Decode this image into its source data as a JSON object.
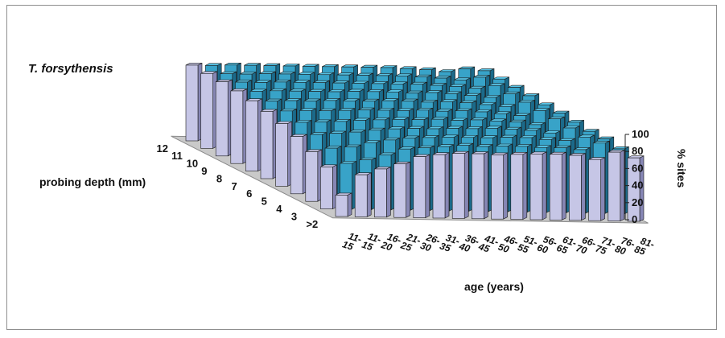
{
  "chart_data": {
    "type": "3d-bar",
    "title": "T. forsythensis",
    "ylabel": "probing depth (mm)",
    "xlabel": "age (years)",
    "zlabel": "% sites",
    "zlim": [
      0,
      100
    ],
    "z_ticks": [
      "0",
      "20",
      "40",
      "60",
      "80",
      "100"
    ],
    "depth_categories": [
      ">2",
      "3",
      "4",
      "5",
      "6",
      "7",
      "8",
      "9",
      "10",
      "11",
      "12"
    ],
    "age_categories": [
      "11-15",
      "11-15",
      "16-20",
      "21-25",
      "26-30",
      "31-35",
      "36-40",
      "41-45",
      "46-50",
      "51-55",
      "56-60",
      "61-65",
      "66-70",
      "71-75",
      "76-80",
      "81-85"
    ],
    "series": [
      {
        "name": ">2",
        "values": [
          28,
          55,
          63,
          70,
          80,
          83,
          85,
          85,
          84,
          85,
          86,
          86,
          85,
          80,
          90,
          83
        ]
      },
      {
        "name": "3",
        "values": [
          55,
          60,
          65,
          72,
          80,
          82,
          84,
          86,
          85,
          86,
          86,
          85,
          85,
          83,
          92,
          85
        ]
      },
      {
        "name": "4",
        "values": [
          65,
          70,
          72,
          78,
          82,
          85,
          86,
          87,
          87,
          87,
          88,
          88,
          86,
          85,
          90,
          88
        ]
      },
      {
        "name": "5",
        "values": [
          75,
          78,
          80,
          82,
          85,
          87,
          88,
          88,
          89,
          89,
          90,
          89,
          88,
          85,
          92,
          88
        ]
      },
      {
        "name": "6",
        "values": [
          82,
          84,
          85,
          86,
          88,
          89,
          90,
          90,
          91,
          90,
          91,
          90,
          89,
          86,
          94,
          90
        ]
      },
      {
        "name": "7",
        "values": [
          88,
          89,
          90,
          90,
          91,
          92,
          92,
          92,
          93,
          92,
          93,
          92,
          90,
          88,
          95,
          92
        ]
      },
      {
        "name": "8",
        "values": [
          92,
          92,
          93,
          93,
          94,
          94,
          94,
          95,
          95,
          94,
          95,
          94,
          92,
          90,
          96,
          93
        ]
      },
      {
        "name": "9",
        "values": [
          95,
          95,
          96,
          96,
          96,
          96,
          97,
          97,
          97,
          96,
          97,
          96,
          94,
          92,
          97,
          95
        ]
      },
      {
        "name": "10",
        "values": [
          97,
          97,
          97,
          98,
          98,
          98,
          98,
          98,
          98,
          98,
          98,
          97,
          96,
          94,
          98,
          96
        ]
      },
      {
        "name": "11",
        "values": [
          98,
          98,
          98,
          99,
          99,
          99,
          99,
          99,
          99,
          99,
          99,
          98,
          97,
          95,
          99,
          97
        ]
      },
      {
        "name": "12",
        "values": [
          99,
          99,
          100,
          100,
          100,
          100,
          100,
          100,
          100,
          100,
          100,
          99,
          98,
          96,
          100,
          98
        ]
      }
    ],
    "colors": {
      "front_row": "#c6c6e6",
      "front_row_side": "#8686b4",
      "left_column": "#c6c6e6",
      "left_column_side": "#8686b4",
      "back_bars": "#38a3c8",
      "back_bars_side": "#1b6a8a",
      "back_bars_top": "#58c4e6",
      "floor": "#c9c9c9",
      "edge": "#1a1a1a"
    }
  }
}
